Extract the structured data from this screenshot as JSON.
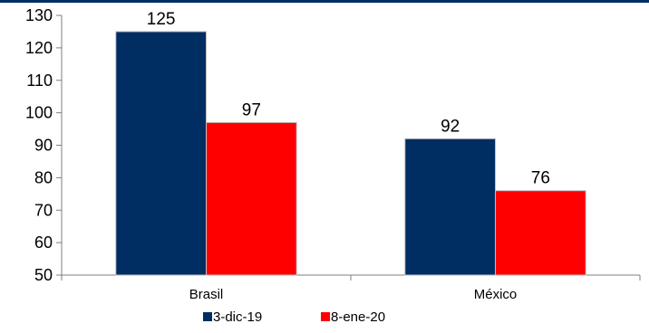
{
  "chart_data": {
    "type": "bar",
    "categories": [
      "Brasil",
      "México"
    ],
    "series": [
      {
        "name": "3-dic-19",
        "values": [
          125,
          92
        ],
        "color": "#002D62"
      },
      {
        "name": "8-ene-20",
        "values": [
          97,
          76
        ],
        "color": "#FF0000"
      }
    ],
    "ylim": [
      50,
      130
    ],
    "yticks": [
      50,
      60,
      70,
      80,
      90,
      100,
      110,
      120,
      130
    ],
    "title": "",
    "xlabel": "",
    "ylabel": "",
    "legend": "bottom",
    "grid": false
  }
}
